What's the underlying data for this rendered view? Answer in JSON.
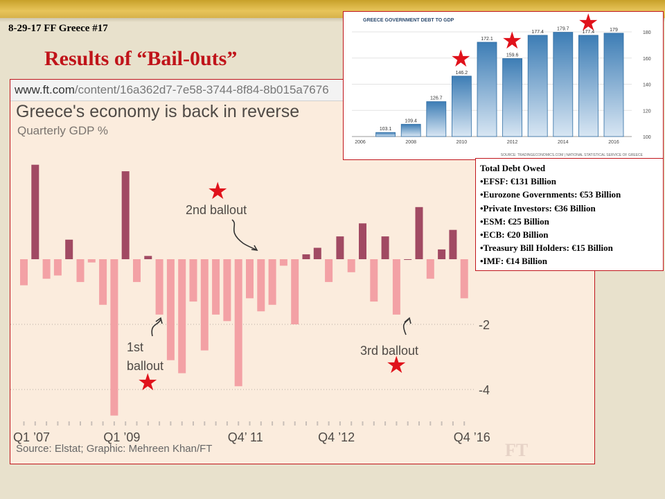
{
  "slide": {
    "id_label": "8-29-17 FF Greece #17",
    "title": "Results of “Bail-0uts”"
  },
  "ft_panel": {
    "url_domain": "www.ft.com",
    "url_path": "/content/16a362d7-7e58-3744-8f84-8b015a7676",
    "logo": "FT"
  },
  "debt_owed": {
    "heading": "Total Debt Owed",
    "items": [
      "•EFSF: €131 Billion",
      "•Eurozone  Governments: €53 Billion",
      "•Private Investors: €36 Billion",
      "•ESM: €25 Billion",
      "•ECB: €20 Billion",
      "•Treasury Bill Holders: €15 Billion",
      "•IMF: €14 Billion"
    ]
  },
  "colors": {
    "accent_red": "#c0141a",
    "star_red": "#e0121b",
    "gdp_positive": "#a14a63",
    "gdp_negative": "#f3a1a5",
    "debt_bar": "#3d7db5"
  },
  "chart_data": [
    {
      "type": "bar",
      "title": "Greece's economy is back in reverse",
      "subtitle": "Quarterly GDP %",
      "source": "Source: Elstat; Graphic: Mehreen Khan/FT",
      "ylim": [
        -4.9,
        3.1
      ],
      "y_ticks": [
        {
          "value": -2,
          "label": "-2"
        },
        {
          "value": -4,
          "label": "-4"
        }
      ],
      "grid": true,
      "x_tick_labels": [
        {
          "index": 0,
          "label": "Q1 ’07"
        },
        {
          "index": 8,
          "label": "Q1 ’09"
        },
        {
          "index": 19,
          "label": "Q4’ 11"
        },
        {
          "index": 27,
          "label": "Q4 ’12"
        },
        {
          "index": 39,
          "label": "Q4 ’16"
        }
      ],
      "values": [
        -0.8,
        2.9,
        -0.6,
        -0.5,
        0.6,
        -0.7,
        -0.1,
        -1.4,
        -4.8,
        2.7,
        -0.7,
        0.1,
        -1.7,
        -3.1,
        -3.5,
        -1.3,
        -2.8,
        -1.7,
        -1.9,
        -3.9,
        -1.2,
        -1.6,
        -1.4,
        -0.2,
        -2.0,
        0.15,
        0.35,
        -0.7,
        0.7,
        -0.4,
        1.1,
        -1.3,
        0.7,
        -1.7,
        0.0,
        1.6,
        -0.6,
        0.3,
        0.9,
        -1.2
      ],
      "annotations": [
        {
          "label_lines": [
            "1st",
            "ballout"
          ]
        },
        {
          "label_lines": [
            "2nd ballout"
          ]
        },
        {
          "label_lines": [
            "3rd ballout"
          ]
        }
      ]
    },
    {
      "type": "bar",
      "title": "GREECE GOVERNMENT DEBT TO GDP",
      "source": "SOURCE: TRADINGECONOMICS.COM  |  NATIONAL STATISTICAL SERVICE OF GREECE",
      "ylim": [
        100,
        180
      ],
      "y_ticks": [
        "100",
        "120",
        "140",
        "160",
        "180"
      ],
      "x_tick_labels": [
        "2006",
        "2008",
        "2010",
        "2012",
        "2014",
        "2016"
      ],
      "x": [
        2007,
        2008,
        2009,
        2010,
        2011,
        2012,
        2013,
        2014,
        2015,
        2016
      ],
      "values": [
        103.1,
        109.4,
        126.7,
        146.2,
        172.1,
        159.6,
        177.4,
        179.7,
        177.4,
        179
      ],
      "value_labels": [
        "103.1",
        "109.4",
        "126.7",
        "146.2",
        "172.1",
        "159.6",
        "177.4",
        "179.7",
        "177.4",
        "179"
      ]
    }
  ]
}
